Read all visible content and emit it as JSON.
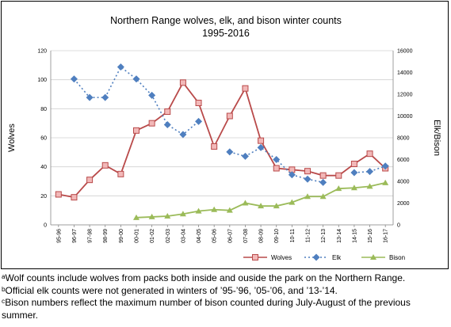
{
  "chart_data": {
    "type": "line",
    "title": "Northern Range wolves, elk, and bison winter counts",
    "subtitle": "1995-2016",
    "ylabel_left": "Wolves",
    "ylabel_right": "Elk/Bison",
    "ylim_left": [
      0,
      120
    ],
    "ylim_right": [
      0,
      16000
    ],
    "yticks_left": [
      "0",
      "20",
      "40",
      "60",
      "80",
      "100",
      "120"
    ],
    "yticks_right": [
      "0",
      "2000",
      "4000",
      "6000",
      "8000",
      "10000",
      "12000",
      "14000",
      "16000"
    ],
    "categories": [
      "95-96",
      "96-97",
      "97-98",
      "98-99",
      "99-00",
      "00-01",
      "01-02",
      "02-03",
      "03-04",
      "04-05",
      "05-06",
      "06-07",
      "07-08",
      "08-09",
      "09-10",
      "10-11",
      "11-12",
      "12-13",
      "13-14",
      "14-15",
      "15-16",
      "16-17"
    ],
    "grid": true,
    "legend_position": "bottom",
    "series": [
      {
        "name": "Wolves",
        "axis": "left",
        "color": "#b94a4a",
        "marker": "square",
        "values": [
          21,
          19,
          31,
          41,
          35,
          65,
          70,
          78,
          98,
          84,
          54,
          75,
          94,
          58,
          39,
          38,
          37,
          34,
          34,
          42,
          49,
          39
        ]
      },
      {
        "name": "Elk",
        "axis": "right",
        "color": "#4f7fbf",
        "marker": "diamond",
        "values": [
          null,
          13400,
          11700,
          11700,
          14500,
          13400,
          11900,
          9200,
          8300,
          9500,
          null,
          6700,
          6300,
          7100,
          6000,
          4600,
          4200,
          3900,
          null,
          4800,
          4900,
          5400
        ]
      },
      {
        "name": "Bison",
        "axis": "left",
        "color": "#9bbb59",
        "marker": "triangle",
        "values": [
          null,
          null,
          null,
          null,
          null,
          5,
          5.5,
          6,
          7.5,
          9.5,
          10.5,
          10,
          15,
          13,
          13,
          15.5,
          19.5,
          19.5,
          25,
          25.5,
          26.5,
          29
        ]
      }
    ]
  },
  "footnotes": [
    "ᵃWolf counts include wolves  from packs both inside and ouside the park on the Northern Range.",
    "ᵇOfficial elk counts were not generated in winters  of ’95-’96, ’05-’06, and ’13-’14.",
    "ᶜBison numbers reflect the maximum number of bison counted during July-August of the previous",
    "summer."
  ]
}
